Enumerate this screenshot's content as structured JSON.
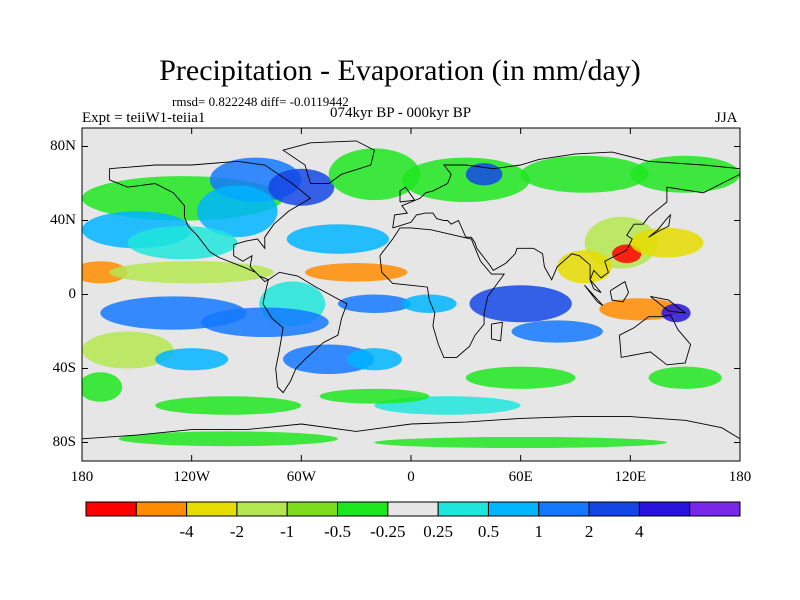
{
  "title": "Precipitation - Evaporation (in mm/day)",
  "stats": {
    "rmsd_label": "rmsd= 0.822248",
    "diff_label": "diff= -0.0119442"
  },
  "experiment": "Expt = teiiW1-teiia1",
  "comparison": "074kyr BP - 000kyr BP",
  "season": "JJA",
  "map": {
    "projection": "cylindrical equidistant",
    "lon_range": [
      -180,
      180
    ],
    "lat_range": [
      -90,
      90
    ],
    "background_color": "#e6e6e6",
    "y_ticks": [
      {
        "value": 80,
        "label": "80N"
      },
      {
        "value": 40,
        "label": "40N"
      },
      {
        "value": 0,
        "label": "0"
      },
      {
        "value": -40,
        "label": "40S"
      },
      {
        "value": -80,
        "label": "80S"
      }
    ],
    "x_ticks": [
      {
        "value": -180,
        "label": "180"
      },
      {
        "value": -120,
        "label": "120W"
      },
      {
        "value": -60,
        "label": "60W"
      },
      {
        "value": 0,
        "label": "0"
      },
      {
        "value": 60,
        "label": "60E"
      },
      {
        "value": 120,
        "label": "120E"
      },
      {
        "value": 180,
        "label": "180"
      }
    ]
  },
  "colorbar": {
    "colors": [
      "#ff0000",
      "#ff8c00",
      "#e6dc00",
      "#b4e650",
      "#7ddc1e",
      "#1ee61e",
      "#e6e6e6",
      "#1ee6dc",
      "#00b4ff",
      "#1478ff",
      "#1446e6",
      "#2814dc",
      "#7828e6"
    ],
    "labels": [
      "-4",
      "-2",
      "-1",
      "-0.5",
      "-0.25",
      "0.25",
      "0.5",
      "1",
      "2",
      "4"
    ]
  }
}
